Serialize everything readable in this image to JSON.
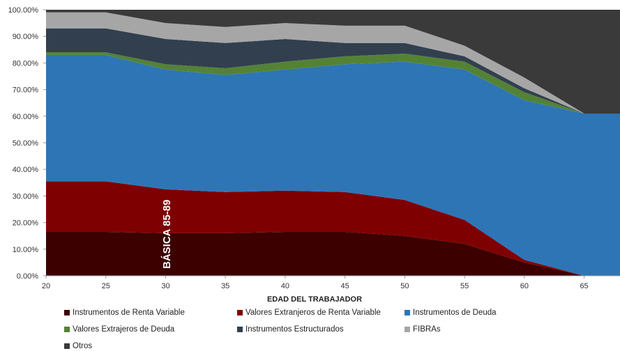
{
  "chart_data": {
    "type": "area",
    "stacked": true,
    "xlabel": "EDAD DEL TRABAJADOR",
    "ylabel": "",
    "x": [
      20,
      25,
      30,
      35,
      40,
      45,
      50,
      55,
      60,
      65,
      68
    ],
    "x_ticks": [
      20,
      25,
      30,
      35,
      40,
      45,
      50,
      55,
      60,
      65
    ],
    "ylim": [
      0,
      100
    ],
    "y_ticks": [
      0,
      10,
      20,
      30,
      40,
      50,
      60,
      70,
      80,
      90,
      100
    ],
    "y_tick_labels": [
      "0.00%",
      "10.00%",
      "20.00%",
      "30.00%",
      "40.00%",
      "50.00%",
      "60.00%",
      "70.00%",
      "80.00%",
      "90.00%",
      "100.00%"
    ],
    "annotation": "BÁSICA 85-89",
    "legend_position": "bottom",
    "series": [
      {
        "name": "Instrumentos de Renta Variable",
        "color": "#3d0000",
        "values": [
          16.5,
          16.5,
          16,
          16,
          16.5,
          16.5,
          15,
          12,
          5,
          0,
          0
        ]
      },
      {
        "name": "Valores Extranjeros de Renta Variable",
        "color": "#7f0000",
        "values": [
          19,
          19,
          16.5,
          15.5,
          15.5,
          15,
          13.5,
          9,
          1,
          0,
          0
        ]
      },
      {
        "name": "Instrumentos de Deuda",
        "color": "#2e75b6",
        "values": [
          47.5,
          47.5,
          45,
          44,
          45.5,
          48,
          52,
          56.5,
          60,
          61,
          61
        ]
      },
      {
        "name": "Valores Extrajeros de Deuda",
        "color": "#548235",
        "values": [
          1,
          1,
          2,
          2.5,
          3,
          3,
          3,
          3,
          3,
          0,
          0
        ]
      },
      {
        "name": "Instrumentos Estructurados",
        "color": "#323f4f",
        "values": [
          9,
          9,
          9.5,
          9.5,
          8.5,
          5,
          4,
          2,
          1.5,
          0,
          0
        ]
      },
      {
        "name": "FIBRAs",
        "color": "#a6a6a6",
        "values": [
          6,
          6,
          6,
          6,
          6,
          6.5,
          6.5,
          4,
          4,
          0,
          0
        ]
      },
      {
        "name": "Otros",
        "color": "#3a3a3a",
        "values": [
          1,
          1,
          5,
          6.5,
          5,
          6,
          6,
          13.5,
          25.5,
          39,
          39
        ]
      }
    ]
  }
}
